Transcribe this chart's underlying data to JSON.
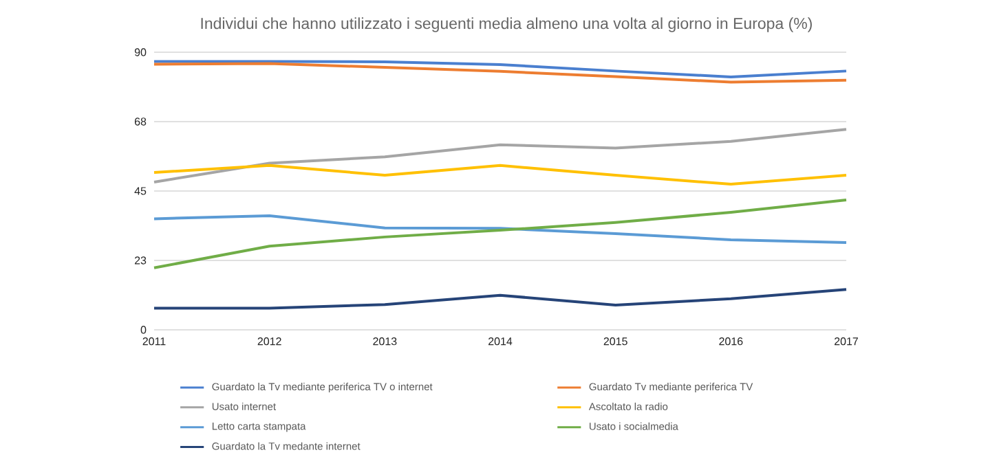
{
  "chart_data": {
    "type": "line",
    "title": "Individui che hanno utilizzato i seguenti media almeno una volta al giorno in Europa (%)",
    "x": [
      2011,
      2012,
      2013,
      2014,
      2015,
      2016,
      2017
    ],
    "xlim": [
      2011,
      2017
    ],
    "xticks": [
      2011,
      2012,
      2013,
      2014,
      2015,
      2016,
      2017
    ],
    "ylim": [
      0,
      90
    ],
    "yticks": [
      0,
      {
        "value": 22.5,
        "label": "23"
      },
      {
        "value": 45,
        "label": "45"
      },
      {
        "value": 67.5,
        "label": "68"
      },
      90
    ],
    "grid": "y",
    "legend": "bottom",
    "marker": "none",
    "line_style": "solid",
    "series": [
      {
        "name": "Guardato la Tv mediante periferica TV o internet",
        "color": "#4a7fcf",
        "values": [
          87.0,
          87.0,
          86.9,
          86.0,
          83.9,
          82.0,
          83.9
        ]
      },
      {
        "name": "Guardato Tv mediante periferica TV",
        "color": "#ed7d31",
        "values": [
          86.1,
          86.3,
          85.1,
          83.8,
          82.1,
          80.3,
          80.9
        ]
      },
      {
        "name": "Usato internet",
        "color": "#a5a5a5",
        "values": [
          47.9,
          54.0,
          56.1,
          60.0,
          58.9,
          61.1,
          65.0
        ]
      },
      {
        "name": "Ascoltato la radio",
        "color": "#ffc000",
        "values": [
          51.0,
          53.3,
          50.1,
          53.3,
          50.1,
          47.2,
          50.1
        ]
      },
      {
        "name": "Letto carta stampata",
        "color": "#5b9bd5",
        "values": [
          36.0,
          37.0,
          33.0,
          32.9,
          31.2,
          29.2,
          28.3
        ]
      },
      {
        "name": "Usato i socialmedia",
        "color": "#70ad47",
        "values": [
          20.1,
          27.1,
          30.1,
          32.3,
          34.8,
          38.1,
          42.1
        ]
      },
      {
        "name": "Guardato la Tv medante internet",
        "color": "#264478",
        "values": [
          7.0,
          7.0,
          8.2,
          11.2,
          8.0,
          10.1,
          13.1
        ]
      }
    ]
  }
}
